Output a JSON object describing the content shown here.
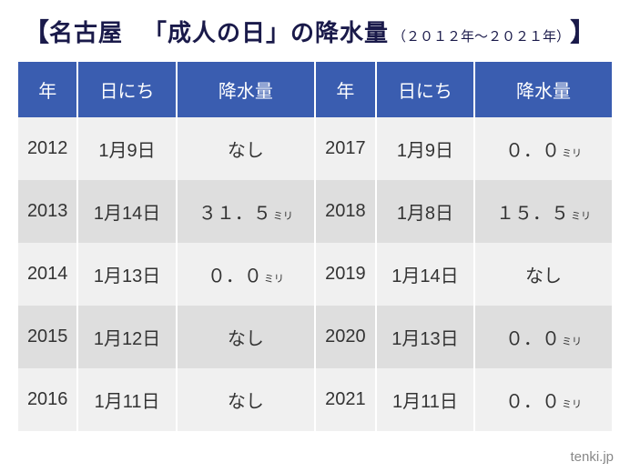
{
  "title": {
    "bracket_open": "【",
    "city": "名古屋",
    "subject": "「成人の日」の降水量",
    "range": "（２０１２年～２０２１年）",
    "bracket_close": "】"
  },
  "headers": {
    "year": "年",
    "date": "日にち",
    "precip": "降水量"
  },
  "unit_label": "ミリ",
  "rows": [
    {
      "l_year": "2012",
      "l_date": "1月9日",
      "l_precip": "なし",
      "l_unit": false,
      "r_year": "2017",
      "r_date": "1月9日",
      "r_precip": "０．０",
      "r_unit": true
    },
    {
      "l_year": "2013",
      "l_date": "1月14日",
      "l_precip": "３１．５",
      "l_unit": true,
      "r_year": "2018",
      "r_date": "1月8日",
      "r_precip": "１５．５",
      "r_unit": true
    },
    {
      "l_year": "2014",
      "l_date": "1月13日",
      "l_precip": "０．０",
      "l_unit": true,
      "r_year": "2019",
      "r_date": "1月14日",
      "r_precip": "なし",
      "r_unit": false
    },
    {
      "l_year": "2015",
      "l_date": "1月12日",
      "l_precip": "なし",
      "l_unit": false,
      "r_year": "2020",
      "r_date": "1月13日",
      "r_precip": "０．０",
      "r_unit": true
    },
    {
      "l_year": "2016",
      "l_date": "1月11日",
      "l_precip": "なし",
      "l_unit": false,
      "r_year": "2021",
      "r_date": "1月11日",
      "r_precip": "０．０",
      "r_unit": true
    }
  ],
  "footer": "tenki.jp",
  "colors": {
    "header_bg": "#3a5db0",
    "header_fg": "#ffffff",
    "row_odd_bg": "#f0f0f0",
    "row_even_bg": "#dedede",
    "title_color": "#1a1a4a",
    "footer_color": "#888888"
  }
}
